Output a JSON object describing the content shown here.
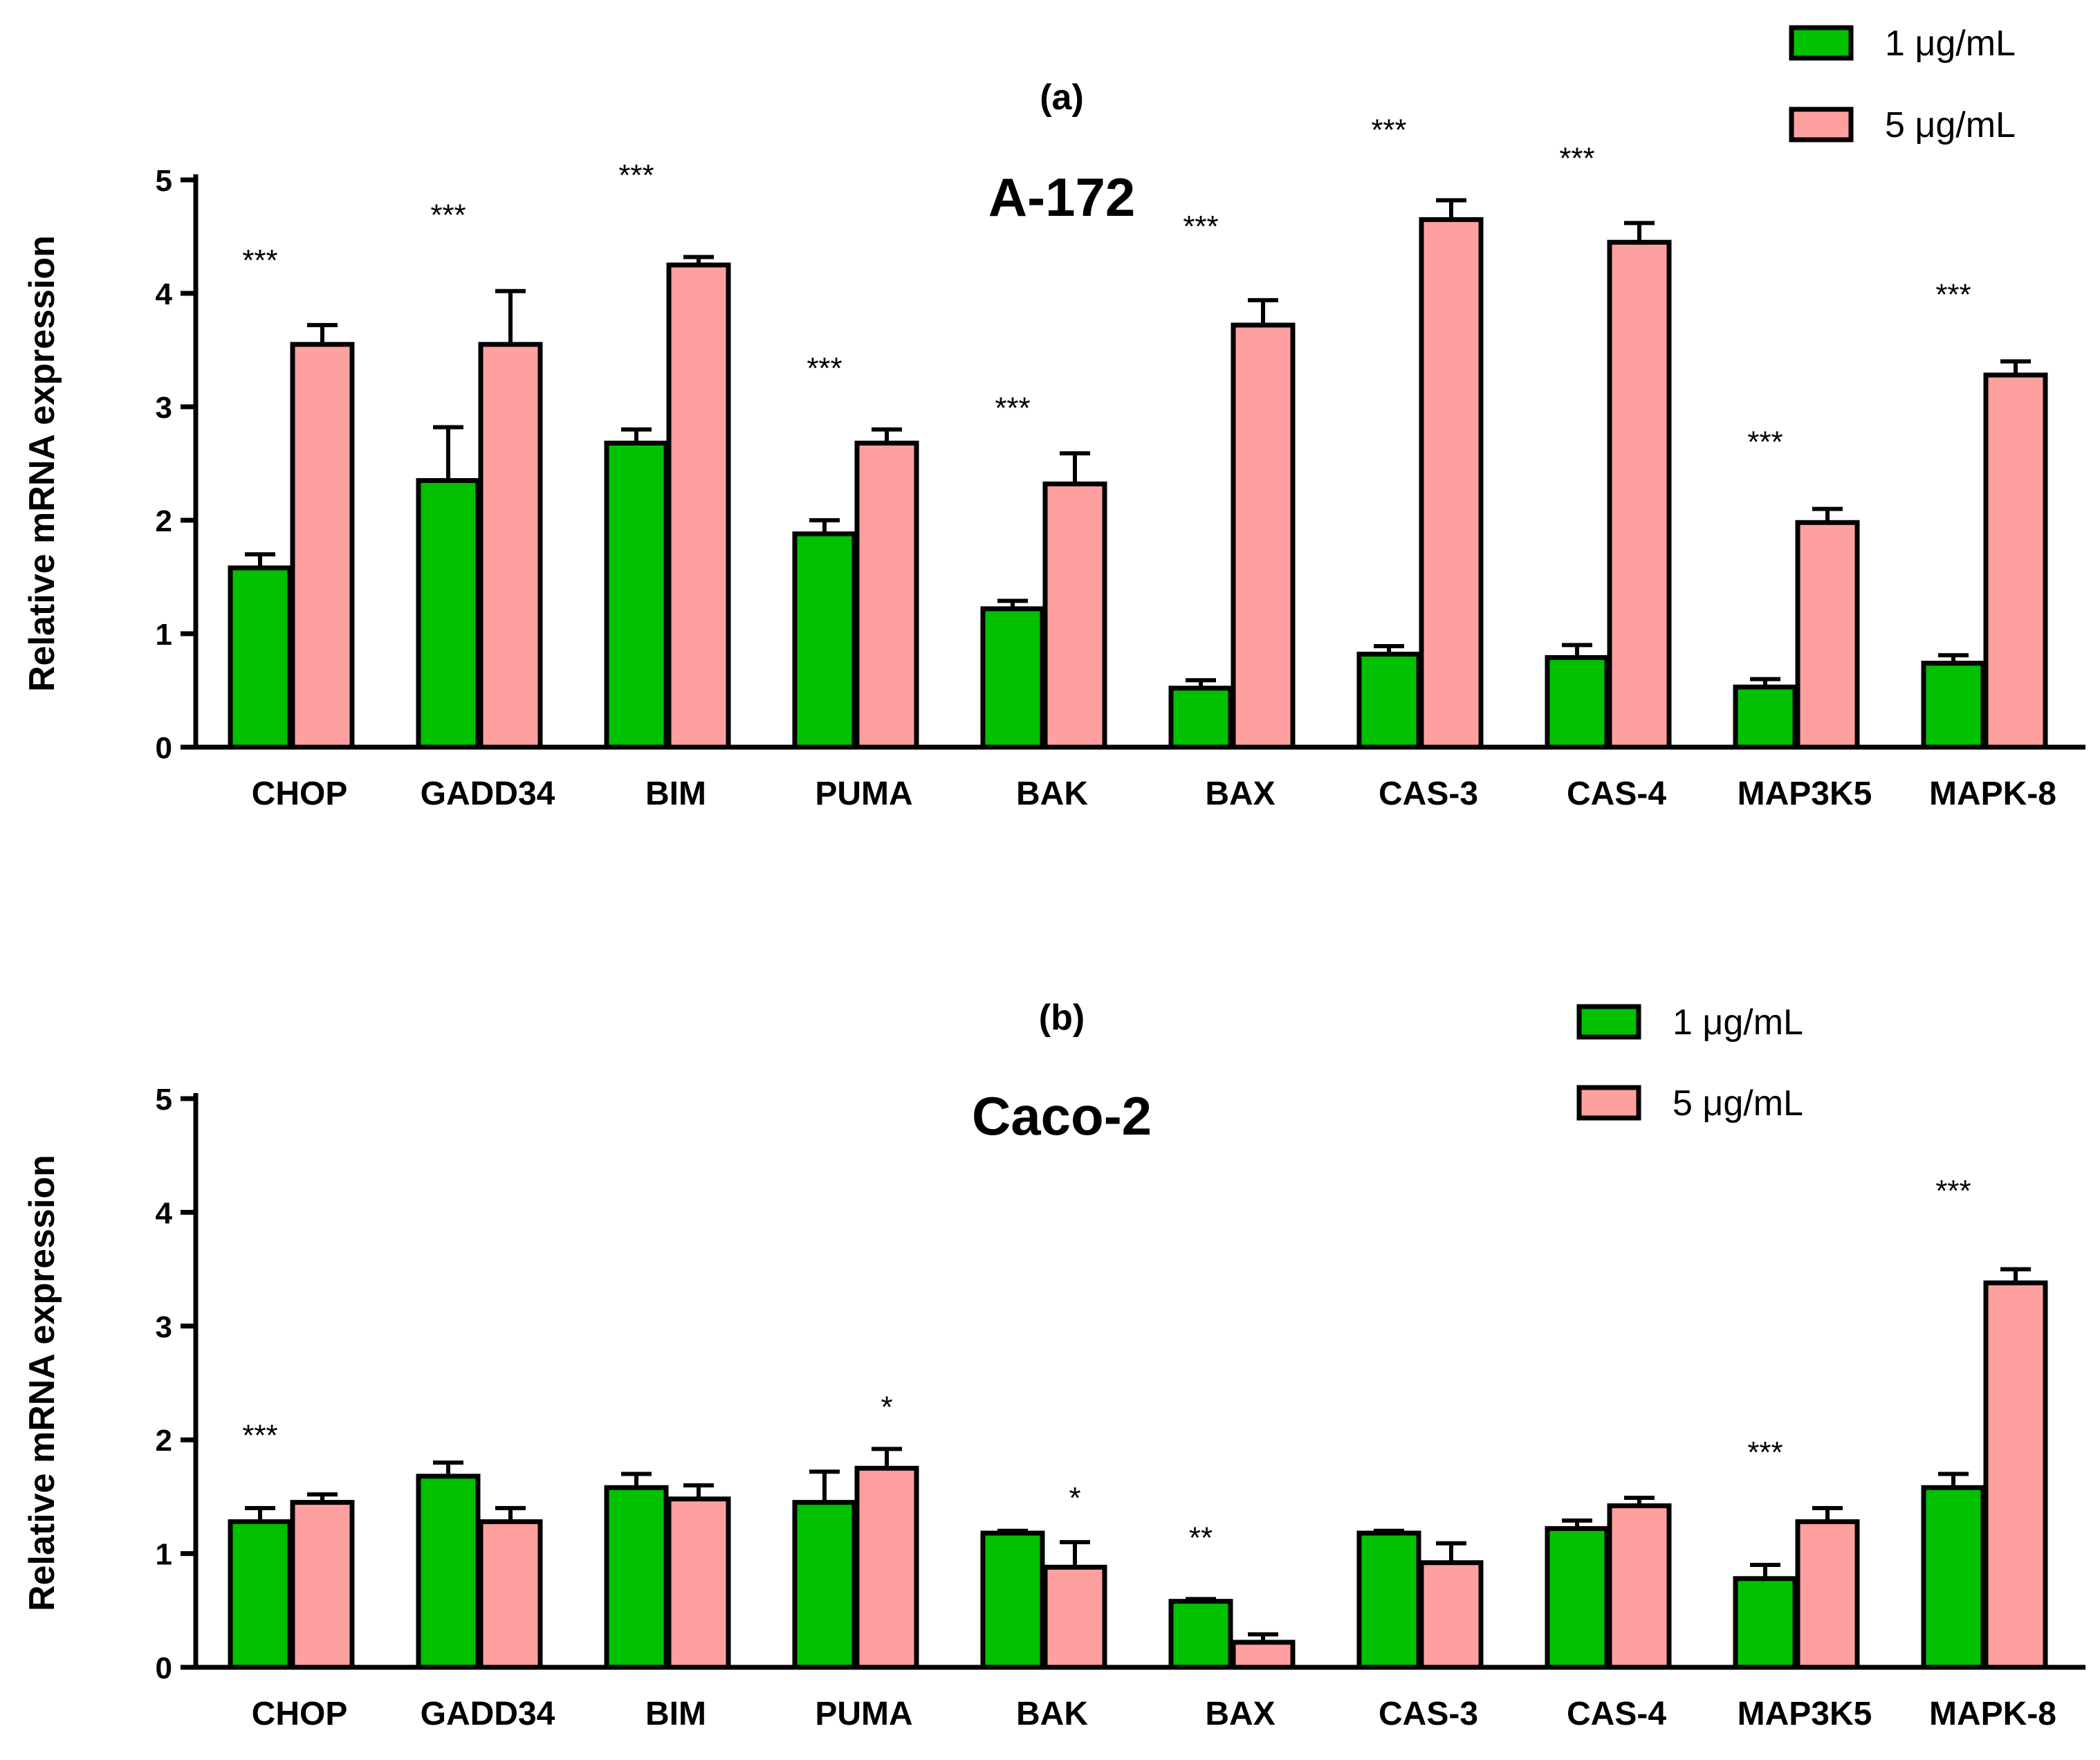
{
  "chart_data": [
    {
      "type": "bar",
      "panel": "(a)",
      "title": "A-172",
      "ylabel": "Relative mRNA expression",
      "xlabel": "",
      "ylim": [
        0,
        5
      ],
      "yticks": [
        0,
        1,
        2,
        3,
        4,
        5
      ],
      "grid": false,
      "legend_position": "top-right",
      "categories": [
        "CHOP",
        "GADD34",
        "BIM",
        "PUMA",
        "BAK",
        "BAX",
        "CAS-3",
        "CAS-4",
        "MAP3K5",
        "MAPK-8"
      ],
      "series": [
        {
          "name": "1 μg/mL",
          "color": "#00c000",
          "values": [
            1.58,
            2.35,
            2.68,
            1.88,
            1.22,
            0.52,
            0.82,
            0.79,
            0.53,
            0.74
          ],
          "errors": [
            0.12,
            0.47,
            0.12,
            0.12,
            0.07,
            0.07,
            0.07,
            0.11,
            0.07,
            0.07
          ]
        },
        {
          "name": "5 μg/mL",
          "color": "#ffa0a0",
          "values": [
            3.55,
            3.55,
            4.25,
            2.68,
            2.32,
            3.72,
            4.65,
            4.45,
            1.98,
            3.28
          ],
          "errors": [
            0.17,
            0.47,
            0.07,
            0.12,
            0.27,
            0.22,
            0.17,
            0.17,
            0.12,
            0.12
          ]
        }
      ],
      "significance": [
        "***",
        "***",
        "***",
        "***",
        "***",
        "***",
        "***",
        "***",
        "***",
        "***"
      ],
      "significance_y": [
        4.2,
        4.6,
        4.95,
        3.25,
        2.9,
        4.5,
        5.35,
        5.1,
        2.6,
        3.9
      ]
    },
    {
      "type": "bar",
      "panel": "(b)",
      "title": "Caco-2",
      "ylabel": "Relative mRNA expression",
      "xlabel": "",
      "ylim": [
        0,
        5
      ],
      "yticks": [
        0,
        1,
        2,
        3,
        4,
        5
      ],
      "grid": false,
      "legend_position": "top-right",
      "categories": [
        "CHOP",
        "GADD34",
        "BIM",
        "PUMA",
        "BAK",
        "BAX",
        "CAS-3",
        "CAS-4",
        "MAP3K5",
        "MAPK-8"
      ],
      "series": [
        {
          "name": "1 μg/mL",
          "color": "#00c000",
          "values": [
            1.28,
            1.68,
            1.58,
            1.45,
            1.18,
            0.58,
            1.18,
            1.22,
            0.78,
            1.58
          ],
          "errors": [
            0.12,
            0.12,
            0.12,
            0.27,
            0.02,
            0.02,
            0.02,
            0.07,
            0.12,
            0.12
          ]
        },
        {
          "name": "5 μg/mL",
          "color": "#ffa0a0",
          "values": [
            1.45,
            1.28,
            1.48,
            1.75,
            0.88,
            0.22,
            0.92,
            1.42,
            1.28,
            3.38
          ],
          "errors": [
            0.07,
            0.12,
            0.12,
            0.17,
            0.22,
            0.07,
            0.17,
            0.07,
            0.12,
            0.12
          ]
        }
      ],
      "significance": [
        "***",
        "",
        "",
        "*",
        "*",
        "**",
        "",
        "",
        "***",
        "***"
      ],
      "significance_y": [
        1.95,
        0,
        0,
        2.2,
        1.4,
        1.05,
        0,
        0,
        1.8,
        4.1
      ]
    }
  ]
}
